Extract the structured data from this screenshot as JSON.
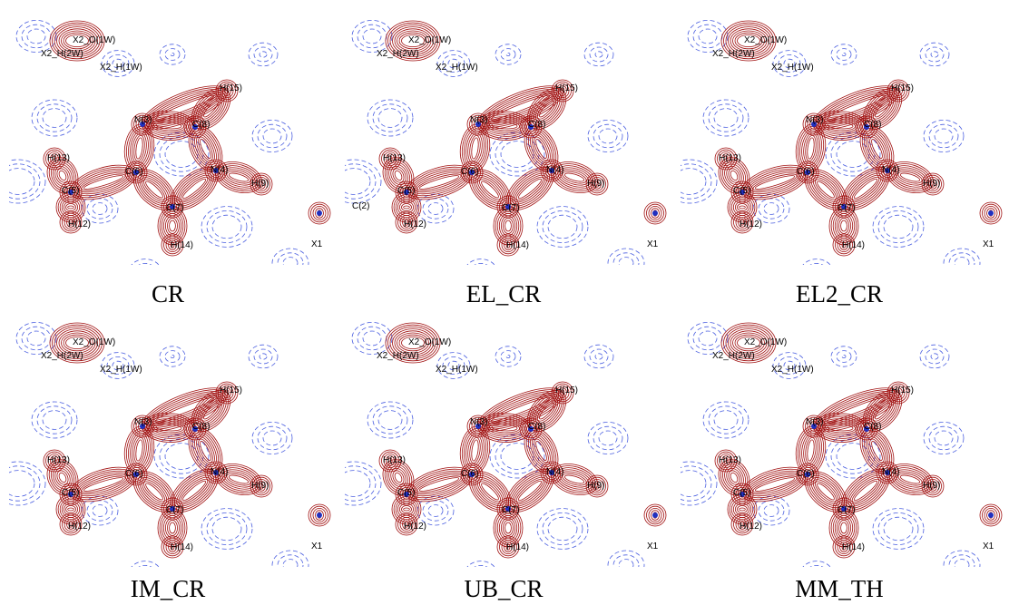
{
  "panels": [
    {
      "caption": "CR",
      "atoms": [
        "X2_O(1W)",
        "X2_H(2W)",
        "X2_H(1W)",
        "H(15)",
        "N(3)",
        "C(8)",
        "H(13)",
        "C(6)",
        "N(4)",
        "H(9)",
        "C(5)",
        "C(7)",
        "H(12)",
        "H(14)",
        "X1"
      ]
    },
    {
      "caption": "EL_CR",
      "atoms": [
        "X2_O(1W)",
        "X2_H(2W)",
        "X2_H(1W)",
        "H(15)",
        "N(3)",
        "C(8)",
        "H(13)",
        "C(6)",
        "N(4)",
        "H(9)",
        "C(5)",
        "C(7)",
        "H(12)",
        "H(14)",
        "X1",
        "C(2)"
      ]
    },
    {
      "caption": "EL2_CR",
      "atoms": [
        "X2_O(1W)",
        "X2_H(2W)",
        "X2_H(1W)",
        "H(15)",
        "N(3)",
        "C(8)",
        "H(13)",
        "C(6)",
        "N(4)",
        "H(9)",
        "C(5)",
        "C(7)",
        "H(12)",
        "H(14)",
        "X1"
      ]
    },
    {
      "caption": "IM_CR",
      "atoms": [
        "X2_O(1W)",
        "X2_H(2W)",
        "X2_H(1W)",
        "H(15)",
        "N(3)",
        "C(8)",
        "H(13)",
        "C(6)",
        "N(4)",
        "H(9)",
        "C(5)",
        "C(7)",
        "H(12)",
        "H(14)",
        "X1"
      ]
    },
    {
      "caption": "UB_CR",
      "atoms": [
        "X2_O(1W)",
        "X2_H(2W)",
        "X2_H(1W)",
        "H(15)",
        "N(3)",
        "C(8)",
        "H(13)",
        "C(6)",
        "N(4)",
        "H(9)",
        "C(5)",
        "C(7)",
        "H(12)",
        "H(14)",
        "X1"
      ]
    },
    {
      "caption": "MM_TH",
      "atoms": [
        "X2_O(1W)",
        "X2_H(2W)",
        "X2_H(1W)",
        "H(15)",
        "N(3)",
        "C(8)",
        "H(13)",
        "C(6)",
        "N(4)",
        "H(9)",
        "C(5)",
        "C(7)",
        "H(12)",
        "H(14)",
        "X1"
      ]
    }
  ]
}
